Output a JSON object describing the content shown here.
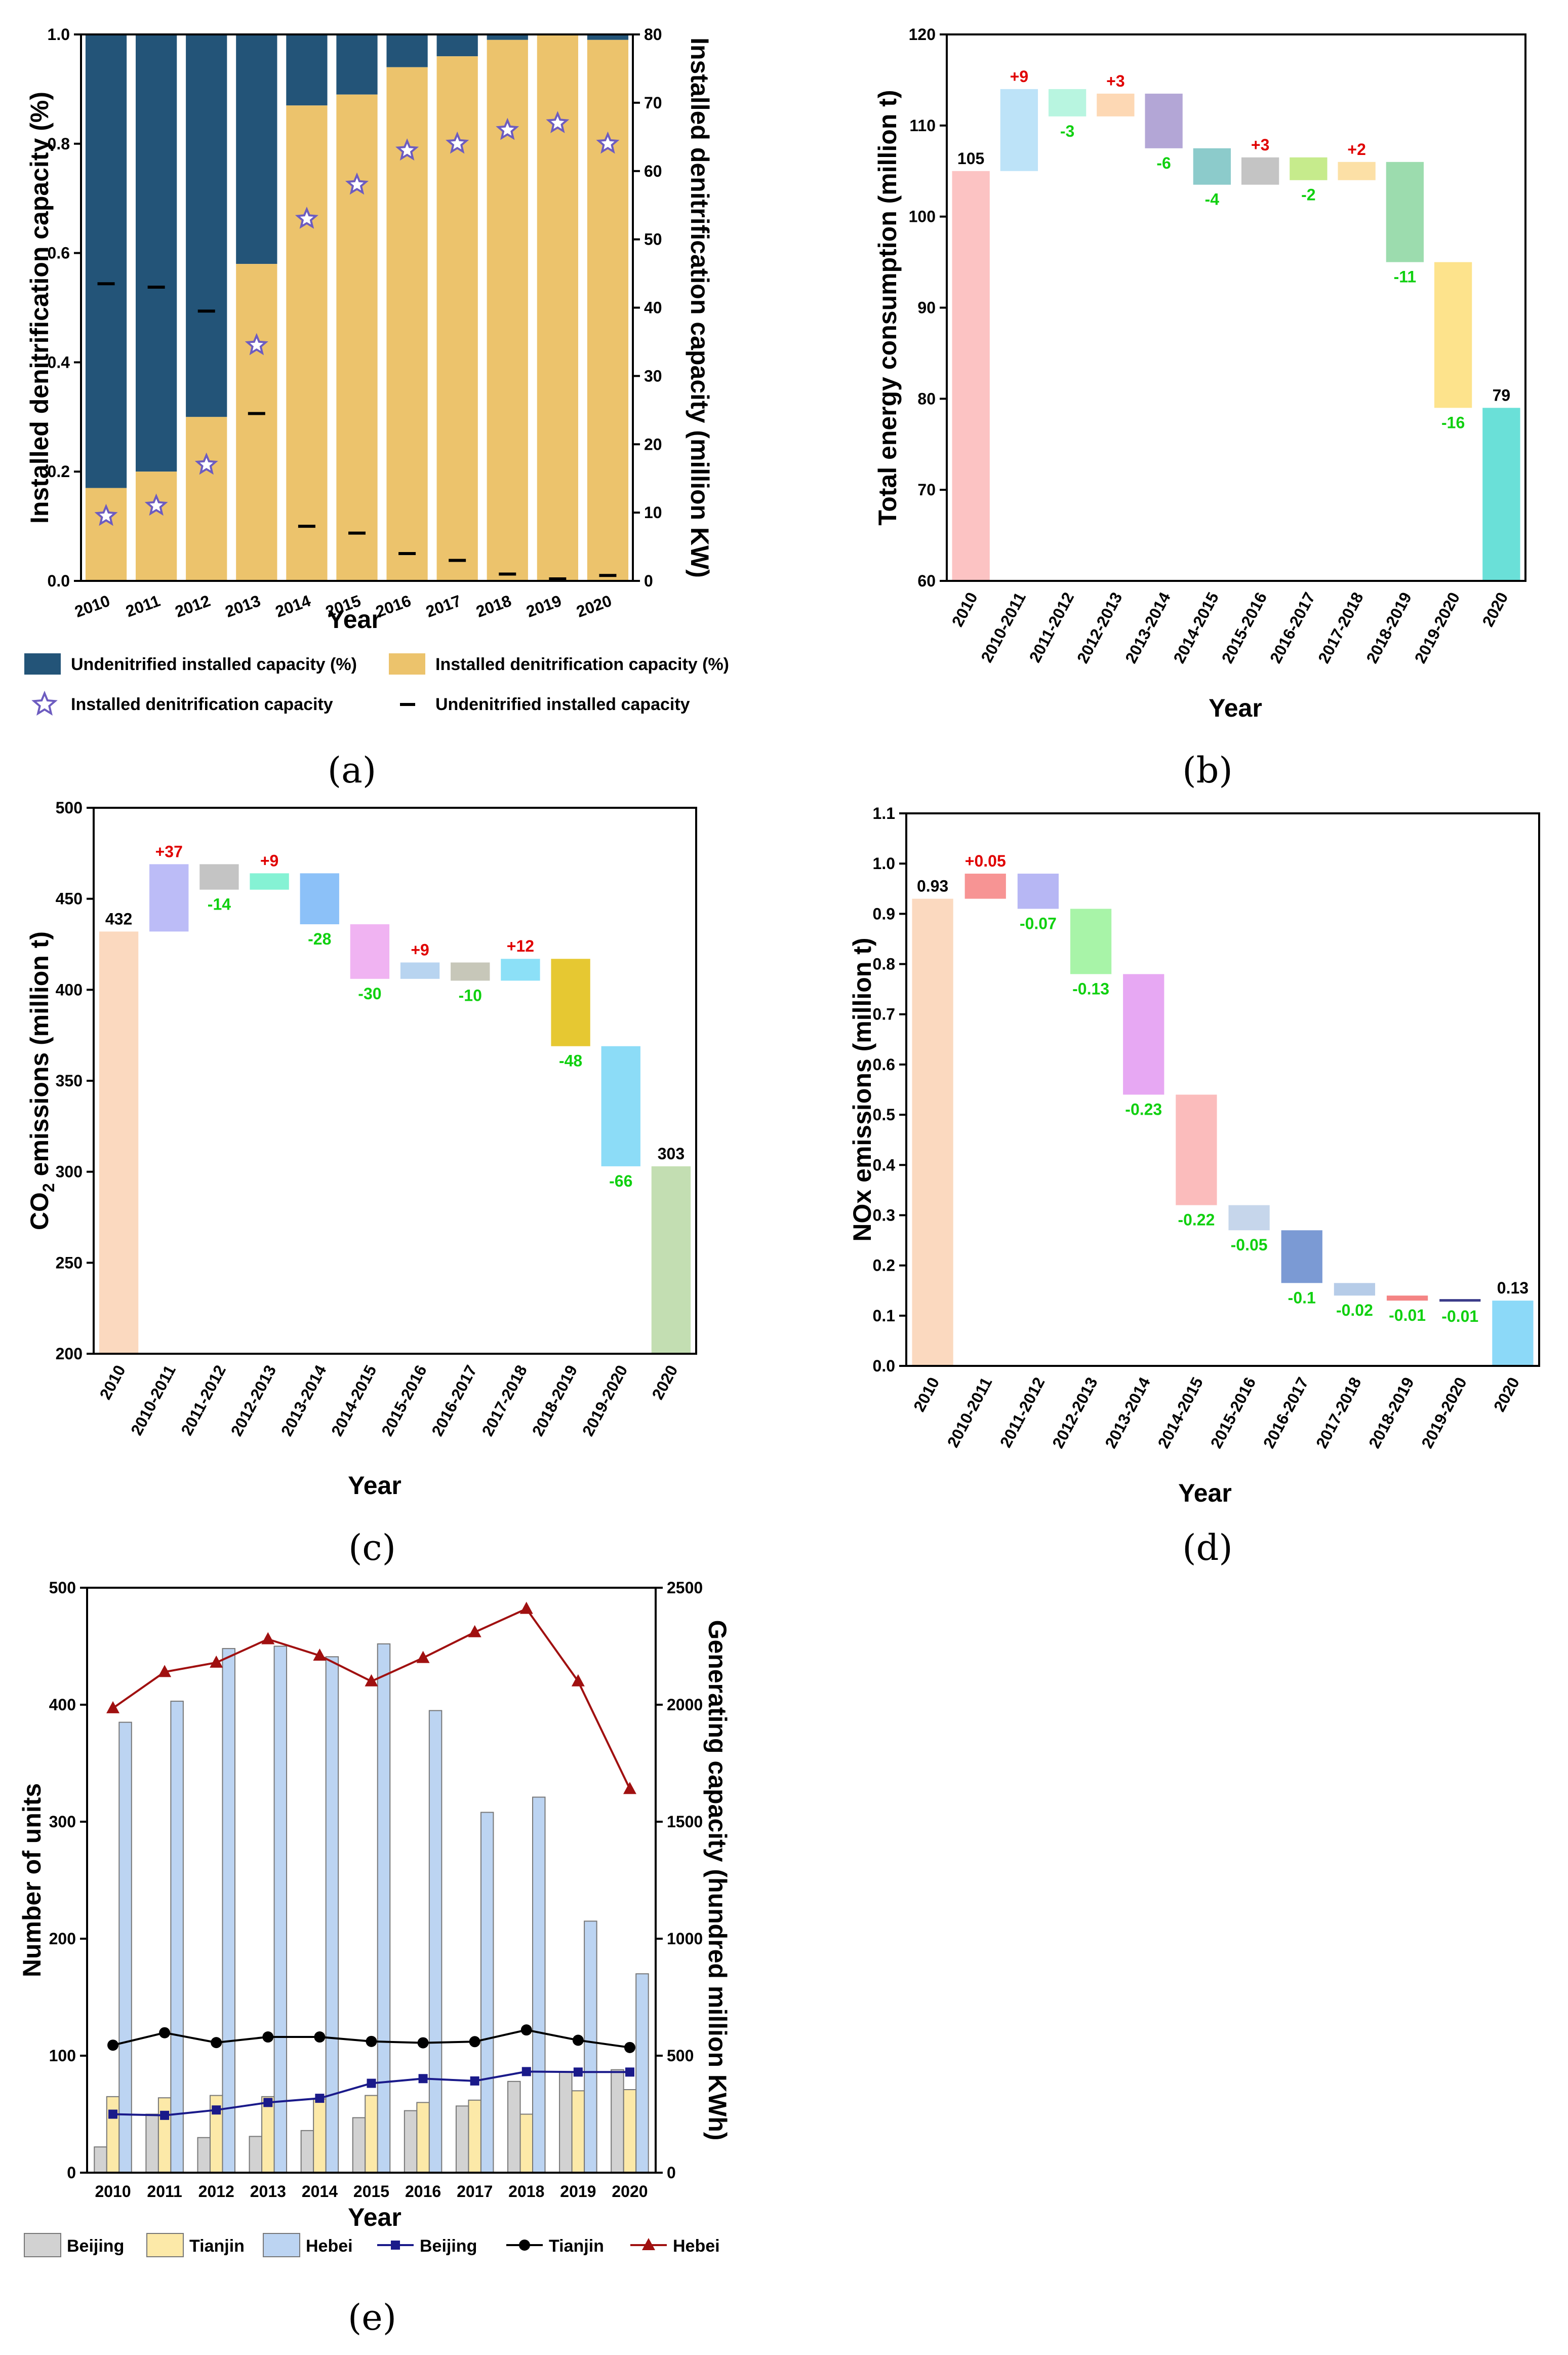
{
  "chart_data": [
    {
      "id": "a",
      "caption": "(a)",
      "type": "bar",
      "subtype": "stacked-100-with-secondary-axis",
      "categories": [
        "2010",
        "2011",
        "2012",
        "2013",
        "2014",
        "2015",
        "2016",
        "2017",
        "2018",
        "2019",
        "2020"
      ],
      "xlabel": "Year",
      "ylabel": "Installed denitrification capacity (%)",
      "ylabel_right": "Installed denitrification capacity (million KW)",
      "ylim": [
        0,
        1.0
      ],
      "ylim_right": [
        0,
        80
      ],
      "yticks": [
        "0.0",
        "0.2",
        "0.4",
        "0.6",
        "0.8",
        "1.0"
      ],
      "yticks_right": [
        "0",
        "10",
        "20",
        "30",
        "40",
        "50",
        "60",
        "70",
        "80"
      ],
      "series": [
        {
          "name": "Installed denitrification capacity (%)",
          "color": "#ecc36c",
          "values": [
            0.17,
            0.2,
            0.3,
            0.58,
            0.87,
            0.89,
            0.94,
            0.96,
            0.99,
            1.0,
            0.99
          ]
        },
        {
          "name": "Undenitrified installed capacity (%)",
          "color": "#235478",
          "values": [
            0.83,
            0.8,
            0.7,
            0.42,
            0.13,
            0.11,
            0.06,
            0.04,
            0.01,
            0.0,
            0.01
          ]
        },
        {
          "name": "Installed denitrification capacity",
          "marker": "star",
          "color": "#6d5cc0",
          "values": [
            9.5,
            11,
            17,
            34.5,
            53,
            58,
            63,
            64,
            66,
            67,
            64
          ]
        },
        {
          "name": "Undenitrified installed capacity",
          "marker": "dash",
          "color": "#000000",
          "values": [
            43.5,
            43,
            39.5,
            24.5,
            8,
            7,
            4,
            3,
            1,
            0.3,
            0.8
          ]
        }
      ]
    },
    {
      "id": "b",
      "caption": "(b)",
      "type": "waterfall",
      "categories": [
        "2010",
        "2010-2011",
        "2011-2012",
        "2012-2013",
        "2013-2014",
        "2014-2015",
        "2015-2016",
        "2016-2017",
        "2017-2018",
        "2018-2019",
        "2019-2020",
        "2020"
      ],
      "labels": [
        "105",
        "+9",
        "-3",
        "+3",
        "-6",
        "-4",
        "+3",
        "-2",
        "+2",
        "-11",
        "-16",
        "79"
      ],
      "bars": [
        [
          60,
          105
        ],
        [
          105,
          114
        ],
        [
          111,
          114
        ],
        [
          111,
          113.5
        ],
        [
          107.5,
          113.5
        ],
        [
          103.5,
          107.5
        ],
        [
          103.5,
          106.5
        ],
        [
          104,
          106.5
        ],
        [
          104,
          106
        ],
        [
          95,
          106
        ],
        [
          79,
          95
        ],
        [
          60,
          79
        ]
      ],
      "colors": [
        "#fcc3c3",
        "#bde3f8",
        "#b8f5e0",
        "#fdd8b4",
        "#b3a6d6",
        "#8ccbcb",
        "#c4c4c4",
        "#c6eb8c",
        "#fce0a6",
        "#9cdcae",
        "#fde38c",
        "#6ae0d8"
      ],
      "xlabel": "Year",
      "ylabel": "Total energy consumption (million t)",
      "ylim": [
        60,
        120
      ],
      "yticks": [
        "60",
        "70",
        "80",
        "90",
        "100",
        "110",
        "120"
      ]
    },
    {
      "id": "c",
      "caption": "(c)",
      "type": "waterfall",
      "categories": [
        "2010",
        "2010-2011",
        "2011-2012",
        "2012-2013",
        "2013-2014",
        "2014-2015",
        "2015-2016",
        "2016-2017",
        "2017-2018",
        "2018-2019",
        "2019-2020",
        "2020"
      ],
      "labels": [
        "432",
        "+37",
        "-14",
        "+9",
        "-28",
        "-30",
        "+9",
        "-10",
        "+12",
        "-48",
        "-66",
        "303"
      ],
      "bars": [
        [
          200,
          432
        ],
        [
          432,
          469
        ],
        [
          455,
          469
        ],
        [
          455,
          464
        ],
        [
          436,
          464
        ],
        [
          406,
          436
        ],
        [
          406,
          415
        ],
        [
          405,
          415
        ],
        [
          405,
          417
        ],
        [
          369,
          417
        ],
        [
          303,
          369
        ],
        [
          200,
          303
        ]
      ],
      "colors": [
        "#fbd9bf",
        "#bcbcf7",
        "#c4c4c4",
        "#85f2d4",
        "#8cc1f8",
        "#f0b3f2",
        "#b8d4f0",
        "#c7c7b9",
        "#8ce0f7",
        "#e6c832",
        "#8cdcf7",
        "#c3deb2"
      ],
      "xlabel": "Year",
      "ylabel_main": "CO",
      "ylabel_sub": "2",
      "ylabel_rest": " emissions (million t)",
      "ylim": [
        200,
        500
      ],
      "yticks": [
        "200",
        "250",
        "300",
        "350",
        "400",
        "450",
        "500"
      ]
    },
    {
      "id": "d",
      "caption": "(d)",
      "type": "waterfall",
      "categories": [
        "2010",
        "2010-2011",
        "2011-2012",
        "2012-2013",
        "2013-2014",
        "2014-2015",
        "2015-2016",
        "2016-2017",
        "2017-2018",
        "2018-2019",
        "2019-2020",
        "2020"
      ],
      "labels": [
        "0.93",
        "+0.05",
        "-0.07",
        "-0.13",
        "-0.23",
        "-0.22",
        "-0.05",
        "-0.1",
        "-0.02",
        "-0.01",
        "-0.01",
        "0.13"
      ],
      "bars": [
        [
          0,
          0.93
        ],
        [
          0.93,
          0.98
        ],
        [
          0.91,
          0.98
        ],
        [
          0.78,
          0.91
        ],
        [
          0.54,
          0.78
        ],
        [
          0.32,
          0.54
        ],
        [
          0.27,
          0.32
        ],
        [
          0.165,
          0.27
        ],
        [
          0.14,
          0.165
        ],
        [
          0.13,
          0.14
        ],
        [
          0.128,
          0.133
        ],
        [
          0,
          0.13
        ]
      ],
      "colors": [
        "#fbd9bf",
        "#f79494",
        "#b7b7f4",
        "#a8f4a8",
        "#e7a8f3",
        "#fbbcbc",
        "#c6d6eb",
        "#7b9ad4",
        "#b6cce8",
        "#f48484",
        "#3c3c8a",
        "#8cd9f8"
      ],
      "xlabel": "Year",
      "ylabel": "NOx emissions (million t)",
      "ylim": [
        0.0,
        1.1
      ],
      "yticks": [
        "0.0",
        "0.1",
        "0.2",
        "0.3",
        "0.4",
        "0.5",
        "0.6",
        "0.7",
        "0.8",
        "0.9",
        "1.0",
        "1.1"
      ]
    },
    {
      "id": "e",
      "caption": "(e)",
      "type": "bar",
      "subtype": "grouped-bars-with-lines-secondary-axis",
      "categories": [
        "2010",
        "2011",
        "2012",
        "2013",
        "2014",
        "2015",
        "2016",
        "2017",
        "2018",
        "2019",
        "2020"
      ],
      "xlabel": "Year",
      "ylabel": "Number of units",
      "ylabel_right": "Generating capacity  (hundred million KWh)",
      "ylim": [
        0,
        500
      ],
      "ylim_right": [
        0,
        2500
      ],
      "yticks": [
        "0",
        "100",
        "200",
        "300",
        "400",
        "500"
      ],
      "yticks_right": [
        "0",
        "500",
        "1000",
        "1500",
        "2000",
        "2500"
      ],
      "series": [
        {
          "name": "Beijing",
          "kind": "bar",
          "axis": "left",
          "color": "#d2d2d2",
          "values": [
            22,
            50,
            30,
            31,
            36,
            47,
            53,
            57,
            78,
            86,
            88
          ]
        },
        {
          "name": "Tianjin",
          "kind": "bar",
          "axis": "left",
          "color": "#fce9a8",
          "values": [
            65,
            64,
            66,
            65,
            63,
            66,
            60,
            62,
            50,
            70,
            71
          ]
        },
        {
          "name": "Hebei",
          "kind": "bar",
          "axis": "left",
          "color": "#bcd4f2",
          "values": [
            385,
            403,
            448,
            450,
            441,
            452,
            395,
            308,
            321,
            215,
            170
          ]
        },
        {
          "name": "Beijing",
          "kind": "line",
          "axis": "right",
          "marker": "square",
          "color": "#1a1a8a",
          "values": [
            250,
            245,
            268,
            300,
            318,
            382,
            402,
            392,
            432,
            430,
            430
          ]
        },
        {
          "name": "Tianjin",
          "kind": "line",
          "axis": "right",
          "marker": "circle",
          "color": "#000000",
          "values": [
            545,
            598,
            556,
            580,
            580,
            561,
            555,
            560,
            610,
            566,
            535
          ]
        },
        {
          "name": "Hebei",
          "kind": "line",
          "axis": "right",
          "marker": "triangle",
          "color": "#a01010",
          "values": [
            1985,
            2140,
            2180,
            2280,
            2210,
            2100,
            2200,
            2310,
            2410,
            2100,
            1640
          ]
        }
      ]
    }
  ]
}
